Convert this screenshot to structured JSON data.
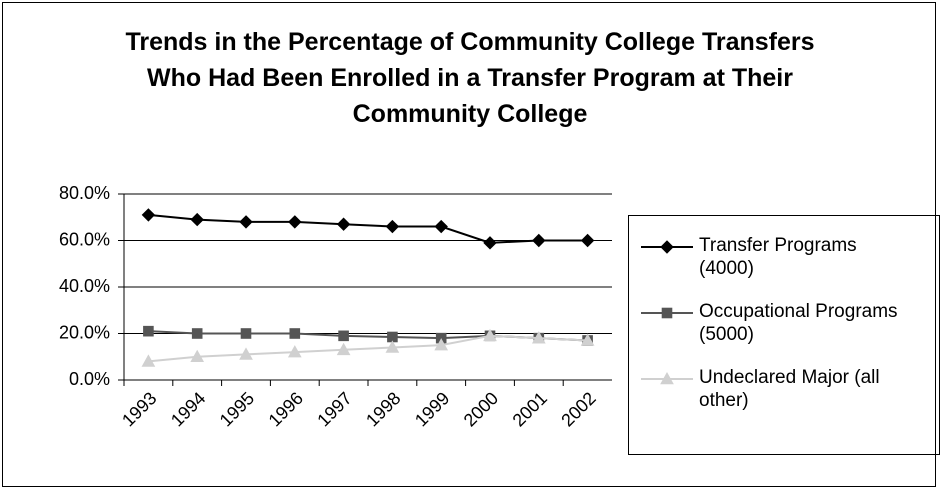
{
  "chart_data": {
    "type": "line",
    "title": "Trends in the Percentage of Community College Transfers Who Had Been Enrolled in a Transfer Program at Their Community College",
    "categories": [
      "1993",
      "1994",
      "1995",
      "1996",
      "1997",
      "1998",
      "1999",
      "2000",
      "2001",
      "2002"
    ],
    "series": [
      {
        "name": "Transfer Programs (4000)",
        "color": "#000000",
        "marker": "diamond",
        "values": [
          71,
          69,
          68,
          68,
          67,
          66,
          66,
          59,
          60,
          60
        ]
      },
      {
        "name": "Occupational Programs (5000)",
        "color": "#555555",
        "marker": "square",
        "values": [
          21,
          20,
          20,
          20,
          19,
          18.5,
          18,
          19,
          18,
          17
        ]
      },
      {
        "name": "Undeclared Major (all other)",
        "color": "#d0d0d0",
        "marker": "triangle",
        "values": [
          8,
          10,
          11,
          12,
          13,
          14,
          15,
          19,
          18,
          17
        ]
      }
    ],
    "ylim": [
      0,
      80
    ],
    "yticks": [
      {
        "value": 0,
        "label": "0.0%"
      },
      {
        "value": 20,
        "label": "20.0%"
      },
      {
        "value": 40,
        "label": "40.0%"
      },
      {
        "value": 60,
        "label": "60.0%"
      },
      {
        "value": 80,
        "label": "80.0%"
      }
    ],
    "grid": true
  }
}
